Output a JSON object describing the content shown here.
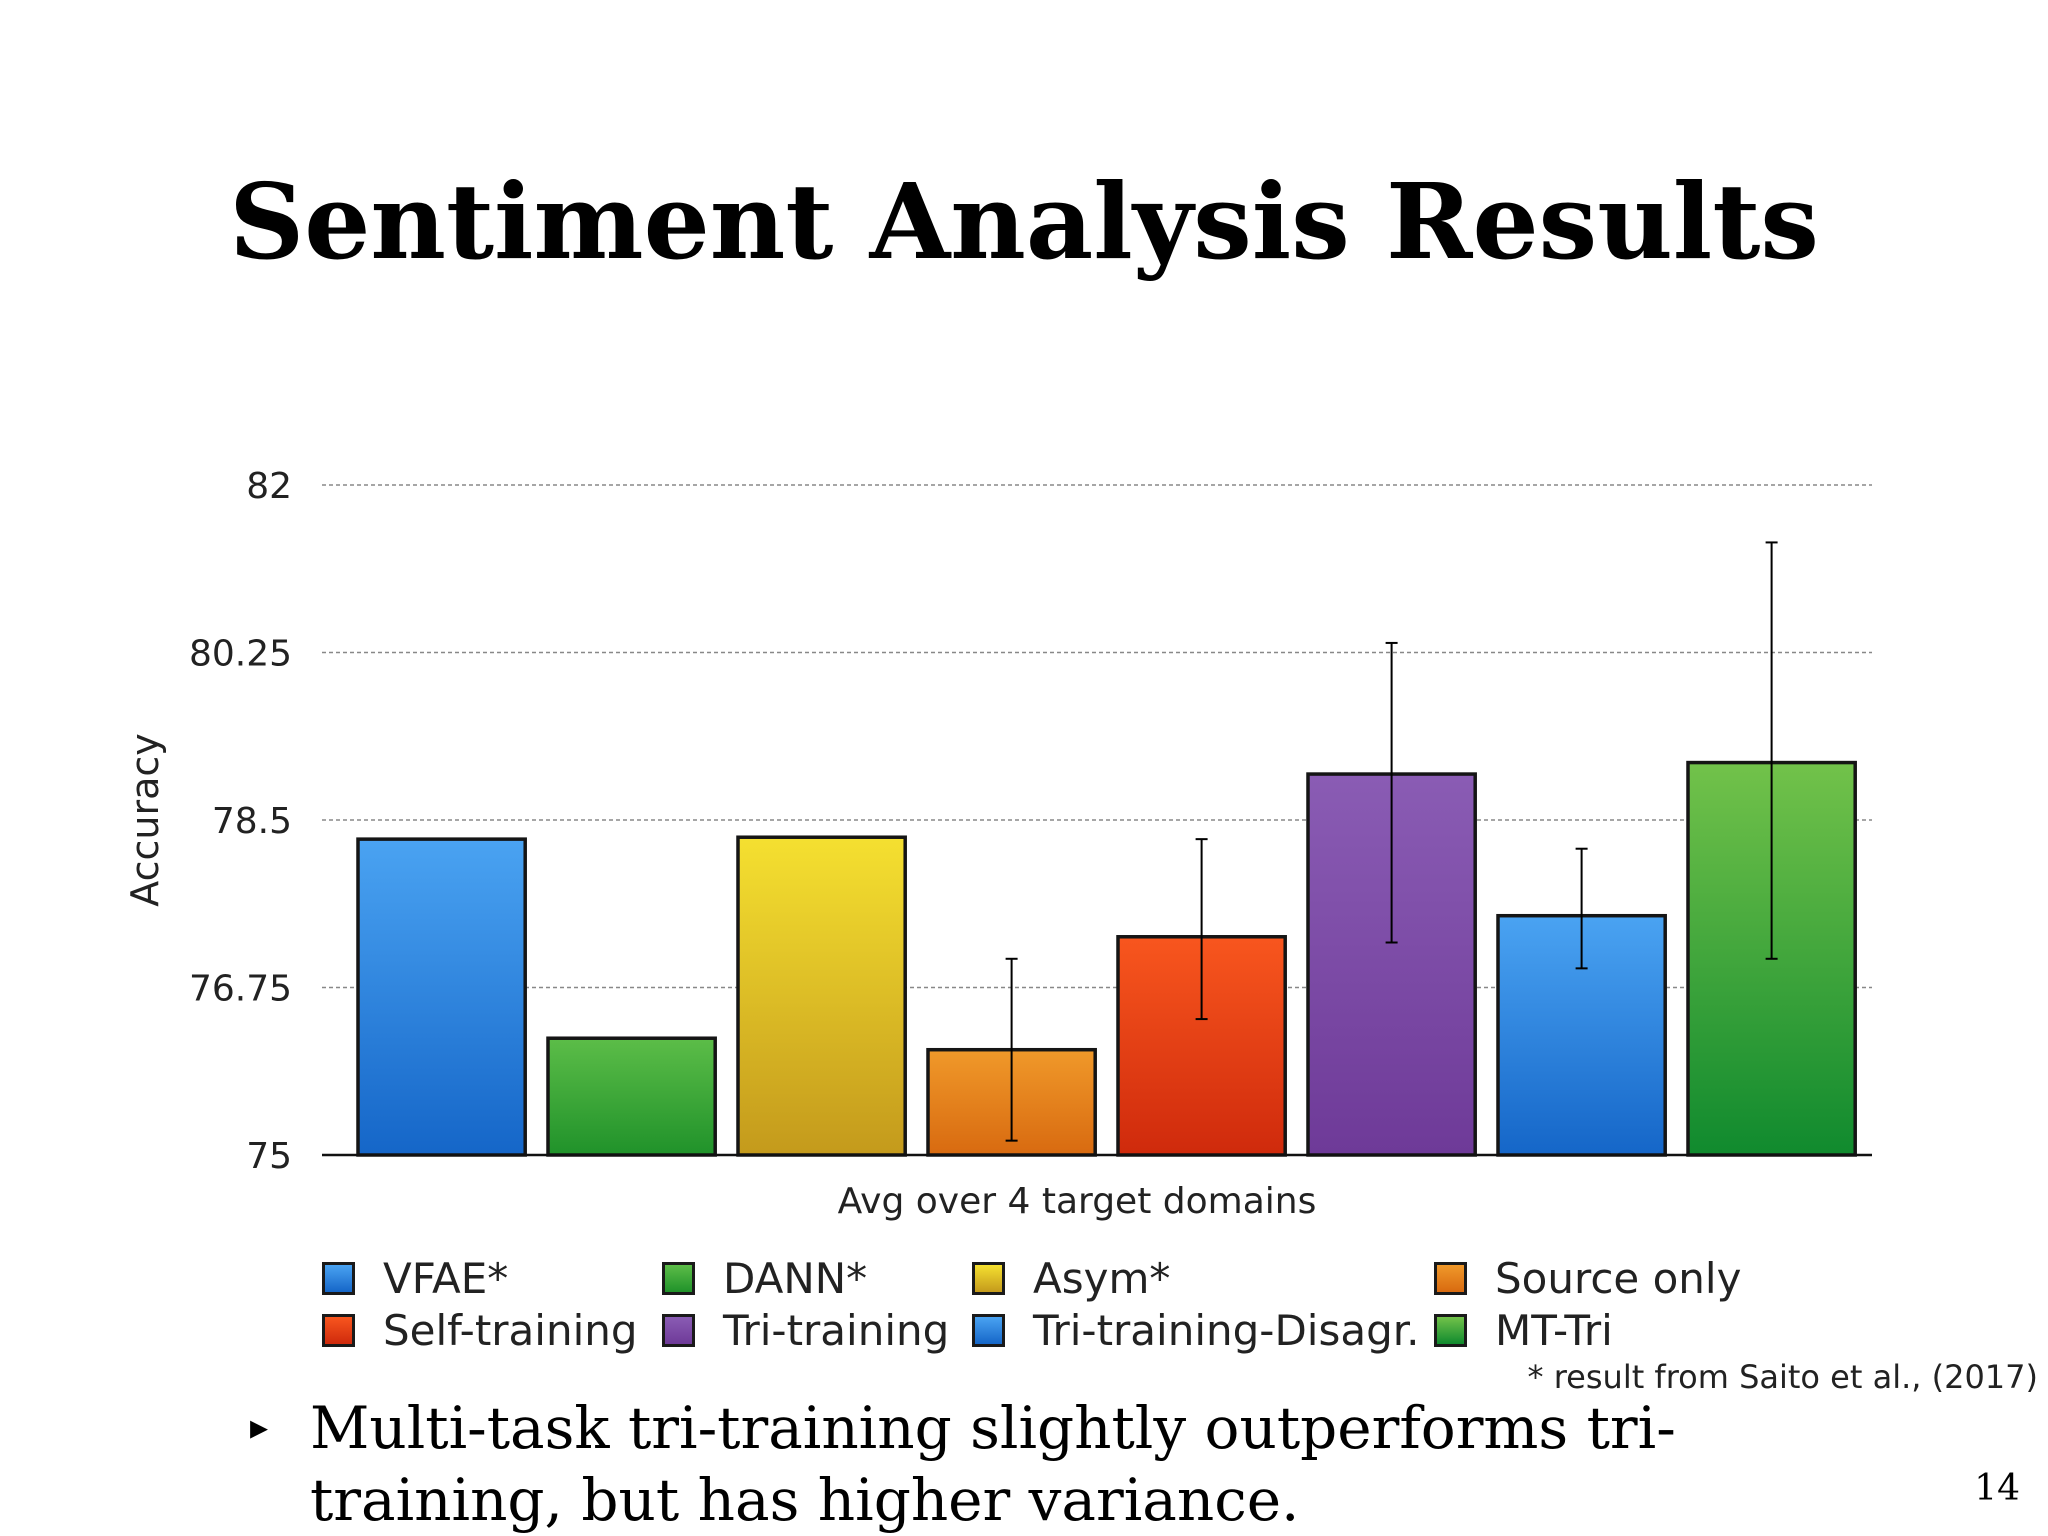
{
  "slide": {
    "title": "Sentiment Analysis Results",
    "footnote": "* result from Saito et al., (2017)",
    "bullet_marker": "▸",
    "bullet_text": "Multi-task tri-training slightly outperforms tri-training, but has higher variance.",
    "page_number": "14"
  },
  "chart_data": {
    "type": "bar",
    "title": "",
    "xlabel": "Avg over 4 target domains",
    "ylabel": "Accuracy",
    "ylim": [
      75,
      82
    ],
    "yticks": [
      75,
      76.75,
      78.5,
      80.25,
      82
    ],
    "ytick_labels": [
      "75",
      "76.75",
      "78.5",
      "80.25",
      "82"
    ],
    "grid": true,
    "legend_position": "bottom",
    "series": [
      {
        "name": "VFAE*",
        "value": 78.3,
        "error": null,
        "color_top": "#4aa3f2",
        "color_bottom": "#1566c8"
      },
      {
        "name": "DANN*",
        "value": 76.22,
        "error": null,
        "color_top": "#5cbd48",
        "color_bottom": "#20922a"
      },
      {
        "name": "Asym*",
        "value": 78.32,
        "error": null,
        "color_top": "#f5e030",
        "color_bottom": "#c49a1c"
      },
      {
        "name": "Source only",
        "value": 76.1,
        "error": [
          75.15,
          77.05
        ],
        "color_top": "#f0992a",
        "color_bottom": "#d86a10"
      },
      {
        "name": "Self-training",
        "value": 77.28,
        "error": [
          76.42,
          78.3
        ],
        "color_top": "#f8561e",
        "color_bottom": "#cf2a0c"
      },
      {
        "name": "Tri-training",
        "value": 78.98,
        "error": [
          77.22,
          80.35
        ],
        "color_top": "#8a5cb4",
        "color_bottom": "#6e3a98"
      },
      {
        "name": "Tri-training-Disagr.",
        "value": 77.5,
        "error": [
          76.95,
          78.2
        ],
        "color_top": "#4aa3f2",
        "color_bottom": "#1566c8"
      },
      {
        "name": "MT-Tri",
        "value": 79.1,
        "error": [
          77.05,
          81.4
        ],
        "color_top": "#72c24a",
        "color_bottom": "#108a2e"
      }
    ]
  }
}
